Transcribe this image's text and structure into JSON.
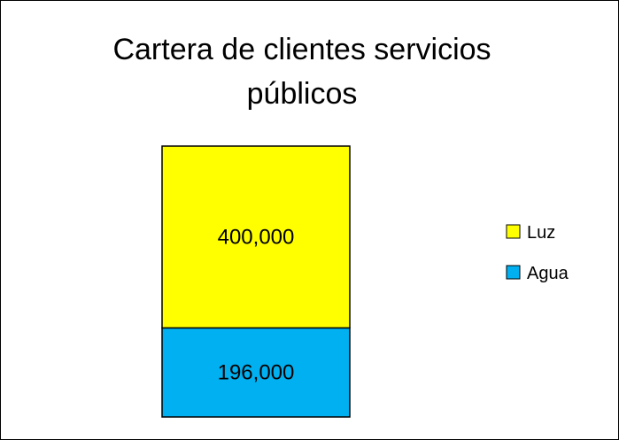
{
  "chart_data": {
    "type": "bar",
    "stacked": true,
    "title": "Cartera de clientes servicios públicos",
    "categories": [
      ""
    ],
    "series": [
      {
        "name": "Agua",
        "values": [
          196000
        ],
        "label": "196,000",
        "color": "#00B0F0"
      },
      {
        "name": "Luz",
        "values": [
          400000
        ],
        "label": "400,000",
        "color": "#FFFF00"
      }
    ],
    "legend": {
      "position": "right",
      "order": [
        "Luz",
        "Agua"
      ]
    },
    "grid": false,
    "axes_visible": false
  }
}
